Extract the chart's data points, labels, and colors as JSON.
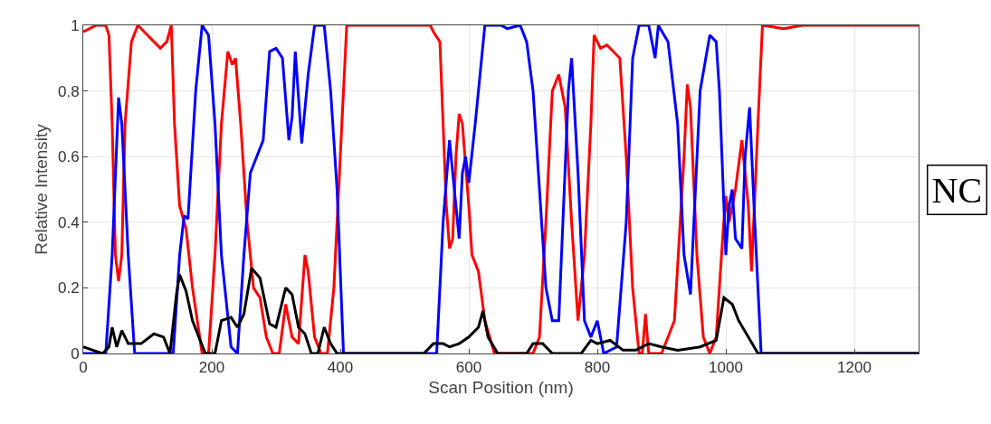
{
  "chart_data": {
    "type": "line",
    "xlabel": "Scan Position (nm)",
    "ylabel": "Relative Intensity",
    "annotations": [
      "NC"
    ],
    "xlim": [
      0,
      1300
    ],
    "xticks": [
      0,
      200,
      400,
      600,
      800,
      1000,
      1200
    ],
    "ylim": [
      0,
      1
    ],
    "yticks": [
      0,
      0.2,
      0.4,
      0.6,
      0.8,
      1
    ],
    "grid": true,
    "marker": "none",
    "line_style": "solid",
    "series": [
      {
        "color": "#ff0000",
        "x": [
          0,
          10,
          20,
          35,
          40,
          45,
          50,
          55,
          60,
          65,
          75,
          85,
          95,
          110,
          120,
          130,
          137,
          142,
          150,
          160,
          170,
          185,
          195,
          205,
          215,
          225,
          232,
          237,
          245,
          255,
          265,
          275,
          285,
          295,
          305,
          315,
          320,
          325,
          335,
          345,
          350,
          360,
          370,
          380,
          390,
          400,
          410,
          500,
          540,
          545,
          555,
          560,
          565,
          570,
          575,
          580,
          585,
          590,
          600,
          605,
          615,
          625,
          640,
          700,
          710,
          720,
          730,
          740,
          750,
          760,
          770,
          780,
          790,
          795,
          805,
          815,
          825,
          835,
          845,
          855,
          865,
          870,
          875,
          880,
          890,
          900,
          920,
          935,
          940,
          945,
          955,
          965,
          975,
          985,
          995,
          1000,
          1005,
          1015,
          1025,
          1035,
          1040,
          1050,
          1057,
          1090,
          1120,
          1300
        ],
        "values": [
          0.98,
          0.99,
          1.0,
          1.0,
          0.97,
          0.7,
          0.3,
          0.22,
          0.3,
          0.7,
          0.95,
          1.0,
          0.98,
          0.95,
          0.93,
          0.95,
          1.0,
          0.7,
          0.45,
          0.38,
          0.2,
          0.0,
          0.0,
          0.3,
          0.7,
          0.92,
          0.88,
          0.9,
          0.7,
          0.4,
          0.2,
          0.17,
          0.05,
          0.0,
          0.0,
          0.15,
          0.1,
          0.05,
          0.03,
          0.3,
          0.25,
          0.05,
          0.0,
          0.0,
          0.2,
          0.6,
          1.0,
          1.0,
          1.0,
          0.98,
          0.95,
          0.7,
          0.45,
          0.32,
          0.35,
          0.6,
          0.73,
          0.7,
          0.45,
          0.3,
          0.25,
          0.1,
          0.0,
          0.0,
          0.05,
          0.4,
          0.8,
          0.85,
          0.75,
          0.4,
          0.1,
          0.3,
          0.7,
          0.97,
          0.93,
          0.94,
          0.92,
          0.9,
          0.6,
          0.2,
          0.0,
          0.0,
          0.12,
          0.0,
          0.0,
          0.0,
          0.1,
          0.6,
          0.82,
          0.75,
          0.3,
          0.05,
          0.0,
          0.05,
          0.35,
          0.48,
          0.4,
          0.5,
          0.65,
          0.45,
          0.25,
          0.7,
          1.0,
          0.99,
          1.0,
          1.0
        ]
      },
      {
        "color": "#0000ff",
        "x": [
          0,
          35,
          45,
          55,
          60,
          70,
          80,
          140,
          150,
          157,
          163,
          175,
          185,
          195,
          205,
          215,
          230,
          240,
          250,
          260,
          270,
          280,
          290,
          300,
          310,
          320,
          325,
          330,
          340,
          350,
          360,
          375,
          385,
          395,
          405,
          550,
          560,
          570,
          585,
          590,
          595,
          600,
          610,
          625,
          650,
          660,
          680,
          690,
          700,
          710,
          720,
          730,
          740,
          755,
          760,
          770,
          780,
          790,
          800,
          810,
          830,
          845,
          855,
          865,
          880,
          890,
          895,
          910,
          925,
          935,
          945,
          960,
          975,
          985,
          990,
          1000,
          1005,
          1010,
          1015,
          1025,
          1030,
          1037,
          1045,
          1055,
          1300
        ],
        "values": [
          0,
          0,
          0.3,
          0.78,
          0.7,
          0.3,
          0.0,
          0.0,
          0.3,
          0.42,
          0.41,
          0.8,
          1.0,
          0.97,
          0.7,
          0.3,
          0.02,
          0.0,
          0.3,
          0.55,
          0.6,
          0.65,
          0.92,
          0.93,
          0.9,
          0.65,
          0.72,
          0.92,
          0.64,
          0.85,
          1.0,
          1.0,
          0.8,
          0.5,
          0.0,
          0.0,
          0.4,
          0.65,
          0.35,
          0.55,
          0.6,
          0.52,
          0.7,
          1.0,
          1.0,
          0.99,
          1.0,
          0.95,
          0.8,
          0.5,
          0.2,
          0.1,
          0.1,
          0.8,
          0.9,
          0.55,
          0.1,
          0.05,
          0.1,
          0.0,
          0.02,
          0.4,
          0.9,
          1.0,
          1.0,
          0.9,
          1.0,
          0.95,
          0.7,
          0.3,
          0.18,
          0.8,
          0.97,
          0.95,
          0.8,
          0.3,
          0.45,
          0.5,
          0.35,
          0.32,
          0.6,
          0.75,
          0.4,
          0.0,
          0
        ]
      },
      {
        "color": "#000000",
        "x": [
          0,
          15,
          30,
          40,
          45,
          52,
          60,
          70,
          90,
          110,
          125,
          135,
          145,
          150,
          160,
          170,
          180,
          190,
          205,
          215,
          230,
          240,
          250,
          262,
          275,
          290,
          300,
          315,
          325,
          335,
          345,
          355,
          365,
          375,
          385,
          395,
          530,
          545,
          560,
          570,
          585,
          600,
          615,
          622,
          630,
          645,
          690,
          700,
          715,
          730,
          775,
          790,
          800,
          820,
          840,
          860,
          880,
          900,
          925,
          960,
          985,
          997,
          1010,
          1020,
          1035,
          1050,
          1300
        ],
        "values": [
          0.02,
          0.01,
          0.0,
          0.02,
          0.08,
          0.02,
          0.07,
          0.03,
          0.03,
          0.06,
          0.05,
          0.0,
          0.18,
          0.24,
          0.19,
          0.1,
          0.05,
          0.0,
          0.0,
          0.1,
          0.11,
          0.08,
          0.12,
          0.26,
          0.23,
          0.09,
          0.08,
          0.2,
          0.18,
          0.08,
          0.06,
          0.0,
          0.0,
          0.08,
          0.03,
          0.0,
          0.0,
          0.03,
          0.03,
          0.02,
          0.03,
          0.05,
          0.08,
          0.13,
          0.05,
          0.0,
          0.0,
          0.03,
          0.03,
          0.0,
          0.0,
          0.04,
          0.03,
          0.04,
          0.01,
          0.01,
          0.03,
          0.02,
          0.01,
          0.02,
          0.04,
          0.17,
          0.15,
          0.1,
          0.05,
          0.0,
          0.0
        ]
      }
    ]
  }
}
